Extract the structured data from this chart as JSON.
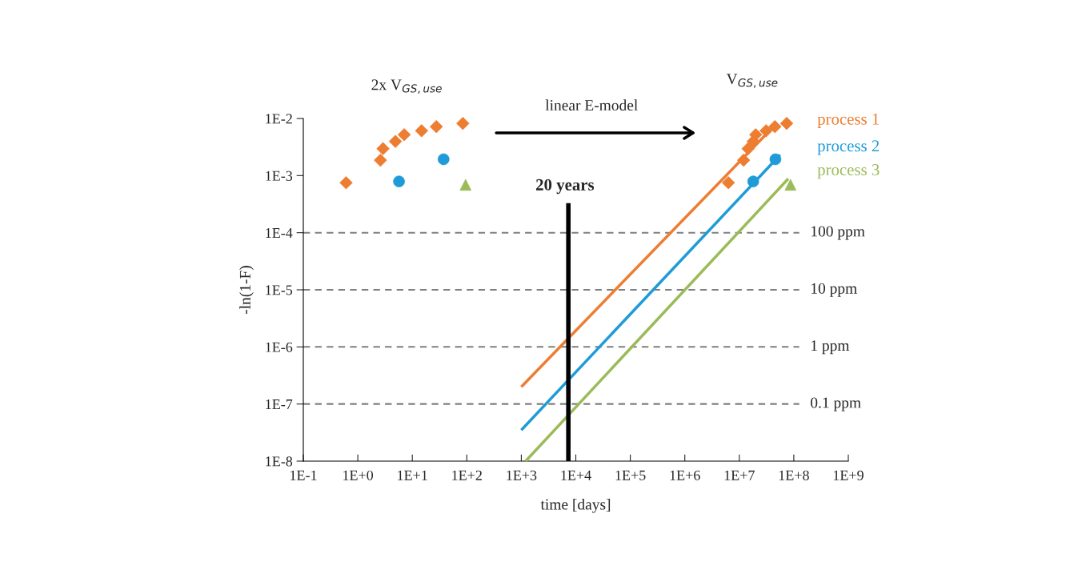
{
  "chart_data": {
    "type": "scatter",
    "xlabel": "time [days]",
    "ylabel": "-ln(1-F)",
    "log": "xy",
    "grid": false,
    "legend": false,
    "xlim": [
      0.1,
      1000000000.0
    ],
    "ylim": [
      1e-08,
      0.01
    ],
    "xticks": [
      {
        "value": 0.1,
        "label": "1E-1"
      },
      {
        "value": 1,
        "label": "1E+0"
      },
      {
        "value": 10,
        "label": "1E+1"
      },
      {
        "value": 100,
        "label": "1E+2"
      },
      {
        "value": 1000,
        "label": "1E+3"
      },
      {
        "value": 10000,
        "label": "1E+4"
      },
      {
        "value": 100000,
        "label": "1E+5"
      },
      {
        "value": 1000000,
        "label": "1E+6"
      },
      {
        "value": 10000000,
        "label": "1E+7"
      },
      {
        "value": 100000000,
        "label": "1E+8"
      },
      {
        "value": 1000000000,
        "label": "1E+9"
      }
    ],
    "yticks": [
      {
        "value": 1e-08,
        "label": "1E-8"
      },
      {
        "value": 1e-07,
        "label": "1E-7"
      },
      {
        "value": 1e-06,
        "label": "1E-6"
      },
      {
        "value": 1e-05,
        "label": "1E-5"
      },
      {
        "value": 0.0001,
        "label": "1E-4"
      },
      {
        "value": 0.001,
        "label": "1E-3"
      },
      {
        "value": 0.01,
        "label": "1E-2"
      }
    ],
    "series": [
      {
        "type": "scatter",
        "color": "#ed7d31",
        "marker": "diamond",
        "x": [
          0.61,
          2.6,
          2.9,
          4.9,
          7.1,
          14.8,
          27.6,
          84.6
        ],
        "values": [
          0.00075,
          0.00186,
          0.00296,
          0.00397,
          0.0052,
          0.0061,
          0.0072,
          0.0082
        ]
      },
      {
        "type": "scatter",
        "color": "#1f9bd7",
        "marker": "circle",
        "x": [
          5.7,
          37.5
        ],
        "values": [
          0.00079,
          0.00193
        ]
      },
      {
        "type": "scatter",
        "color": "#9bbb59",
        "marker": "triangle",
        "x": [
          95
        ],
        "values": [
          0.00069
        ]
      },
      {
        "type": "scatter",
        "color": "#ed7d31",
        "marker": "diamond",
        "x": [
          6300000,
          12000000,
          14500000,
          18000000,
          20000000,
          31000000,
          45000000,
          74000000
        ],
        "values": [
          0.00075,
          0.00186,
          0.00296,
          0.00397,
          0.0052,
          0.0061,
          0.0072,
          0.0082
        ]
      },
      {
        "type": "scatter",
        "color": "#1f9bd7",
        "marker": "circle",
        "x": [
          18000000,
          46000000
        ],
        "values": [
          0.00079,
          0.00193
        ]
      },
      {
        "type": "scatter",
        "color": "#9bbb59",
        "marker": "triangle",
        "x": [
          87000000
        ],
        "values": [
          0.00069
        ]
      },
      {
        "type": "line",
        "name": "process 1",
        "color": "#ed7d31",
        "x": [
          1000,
          40000000
        ],
        "values": [
          2e-07,
          0.0068
        ]
      },
      {
        "type": "line",
        "name": "process 2",
        "color": "#1f9bd7",
        "x": [
          1000,
          56000000
        ],
        "values": [
          3.5e-08,
          0.0023
        ]
      },
      {
        "type": "line",
        "name": "process 3",
        "color": "#9bbb59",
        "x": [
          1200,
          79000000
        ],
        "values": [
          1e-08,
          0.00088
        ]
      },
      {
        "type": "line",
        "color": "#000000",
        "x": [
          7300,
          7300
        ],
        "values": [
          1e-08,
          0.00033
        ]
      }
    ],
    "ref_lines": [
      {
        "axis": "y",
        "value": 0.0001,
        "label": "100 ppm",
        "color": "#7f7f7f",
        "line_style": "dashed"
      },
      {
        "axis": "y",
        "value": 1e-05,
        "label": "10 ppm",
        "color": "#7f7f7f",
        "line_style": "dashed"
      },
      {
        "axis": "y",
        "value": 1e-06,
        "label": "1 ppm",
        "color": "#7f7f7f",
        "line_style": "dashed"
      },
      {
        "axis": "y",
        "value": 1e-07,
        "label": "0.1 ppm",
        "color": "#7f7f7f",
        "line_style": "dashed"
      }
    ],
    "annotations": [
      "2x V$_{GS,use}$",
      "V$_{GS,use}$",
      "linear E-model",
      "20 years"
    ]
  }
}
